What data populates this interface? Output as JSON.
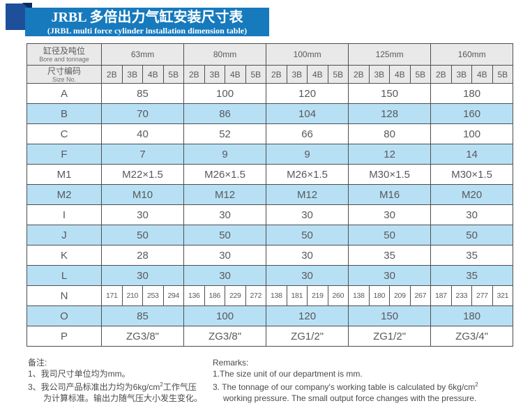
{
  "banner": {
    "title_zh": "JRBL 多倍出力气缸安装尺寸表",
    "title_en": "(JRBL multi force cylinder installation dimension table)"
  },
  "table": {
    "corner": {
      "bore_zh": "缸径及吨位",
      "bore_en": "Bore and tonnage",
      "size_zh": "尺寸编码",
      "size_en": "Size No."
    },
    "bore_groups": [
      "63mm",
      "80mm",
      "100mm",
      "125mm",
      "160mm"
    ],
    "size_codes": [
      "2B",
      "3B",
      "4B",
      "5B"
    ],
    "rows": [
      {
        "label": "A",
        "type": "span",
        "shade": false,
        "values": [
          "85",
          "100",
          "120",
          "150",
          "180"
        ]
      },
      {
        "label": "B",
        "type": "span",
        "shade": true,
        "values": [
          "70",
          "86",
          "104",
          "128",
          "160"
        ]
      },
      {
        "label": "C",
        "type": "span",
        "shade": false,
        "values": [
          "40",
          "52",
          "66",
          "80",
          "100"
        ]
      },
      {
        "label": "F",
        "type": "span",
        "shade": true,
        "values": [
          "7",
          "9",
          "9",
          "12",
          "14"
        ]
      },
      {
        "label": "M1",
        "type": "span",
        "shade": false,
        "values": [
          "M22×1.5",
          "M26×1.5",
          "M26×1.5",
          "M30×1.5",
          "M30×1.5"
        ]
      },
      {
        "label": "M2",
        "type": "span",
        "shade": true,
        "values": [
          "M10",
          "M12",
          "M12",
          "M16",
          "M20"
        ]
      },
      {
        "label": "I",
        "type": "span",
        "shade": false,
        "values": [
          "30",
          "30",
          "30",
          "30",
          "30"
        ]
      },
      {
        "label": "J",
        "type": "span",
        "shade": true,
        "values": [
          "50",
          "50",
          "50",
          "50",
          "50"
        ]
      },
      {
        "label": "K",
        "type": "span",
        "shade": false,
        "values": [
          "28",
          "30",
          "30",
          "35",
          "35"
        ]
      },
      {
        "label": "L",
        "type": "span",
        "shade": true,
        "values": [
          "30",
          "30",
          "30",
          "30",
          "35"
        ]
      },
      {
        "label": "N",
        "type": "cells",
        "shade": false,
        "values": [
          [
            "171",
            "210",
            "253",
            "294"
          ],
          [
            "136",
            "186",
            "229",
            "272"
          ],
          [
            "138",
            "181",
            "219",
            "260"
          ],
          [
            "138",
            "180",
            "209",
            "267"
          ],
          [
            "187",
            "233",
            "277",
            "321"
          ]
        ]
      },
      {
        "label": "O",
        "type": "span",
        "shade": true,
        "values": [
          "85",
          "100",
          "120",
          "150",
          "180"
        ]
      },
      {
        "label": "P",
        "type": "span",
        "shade": false,
        "values": [
          "ZG3/8\"",
          "ZG3/8\"",
          "ZG1/2\"",
          "ZG1/2\"",
          "ZG3/4\""
        ]
      }
    ]
  },
  "notes_zh": {
    "heading": "备注:",
    "line1": "1、我司尺寸单位均为mm。",
    "line2_pre": "3、我公司产品标准出力均为6kg/cm",
    "line2_sup": "2",
    "line2_post": "工作气压",
    "line3": "为计算标准。输出力随气压大小发生变化。"
  },
  "notes_en": {
    "heading": "Remarks:",
    "line1": "1.The size unit of our department is mm.",
    "line2_pre": "3. The tonnage of our company's working table is calculated by 6kg/cm",
    "line2_sup": "2",
    "line3": "working pressure. The small output force changes with the pressure."
  },
  "colors": {
    "banner_blue": "#167abd",
    "ribbon_blue": "#1d4f9b",
    "fold_navy": "#0d2a5e",
    "header_gray": "#e9e9e9",
    "row_blue": "#b8e0f5",
    "border_gray": "#4d4d4d",
    "text_gray": "#58595b"
  }
}
